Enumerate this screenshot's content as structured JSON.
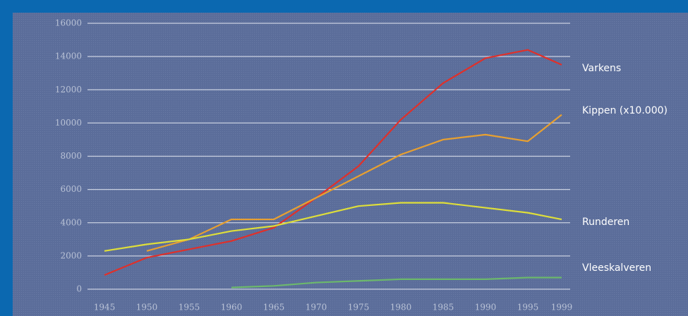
{
  "chart_data": {
    "type": "line",
    "x": [
      1945,
      1950,
      1955,
      1960,
      1965,
      1970,
      1975,
      1980,
      1985,
      1990,
      1995,
      1999
    ],
    "series": [
      {
        "name": "Varkens",
        "color": "#e0302a",
        "values": [
          850,
          1900,
          2400,
          2900,
          3700,
          5500,
          7400,
          10200,
          12400,
          13900,
          14400,
          13500
        ]
      },
      {
        "name": "Kippen (x10.000)",
        "color": "#e8a030",
        "values": [
          null,
          2300,
          3000,
          4200,
          4200,
          5500,
          6800,
          8100,
          9000,
          9300,
          8900,
          10500
        ]
      },
      {
        "name": "Runderen",
        "color": "#dede3a",
        "values": [
          2300,
          2700,
          3000,
          3500,
          3800,
          4400,
          5000,
          5200,
          5200,
          4900,
          4600,
          4200
        ]
      },
      {
        "name": "Vleeskalveren",
        "color": "#6cb86c",
        "values": [
          null,
          null,
          null,
          100,
          200,
          400,
          500,
          600,
          600,
          600,
          700,
          700
        ]
      }
    ],
    "xlim": [
      1943,
      2000
    ],
    "xticks": [
      1945,
      1950,
      1955,
      1960,
      1965,
      1970,
      1975,
      1980,
      1985,
      1990,
      1995,
      1999
    ],
    "ylim": [
      0,
      16000
    ],
    "yticks": [
      0,
      2000,
      4000,
      6000,
      8000,
      10000,
      12000,
      14000,
      16000
    ],
    "grid": true
  }
}
